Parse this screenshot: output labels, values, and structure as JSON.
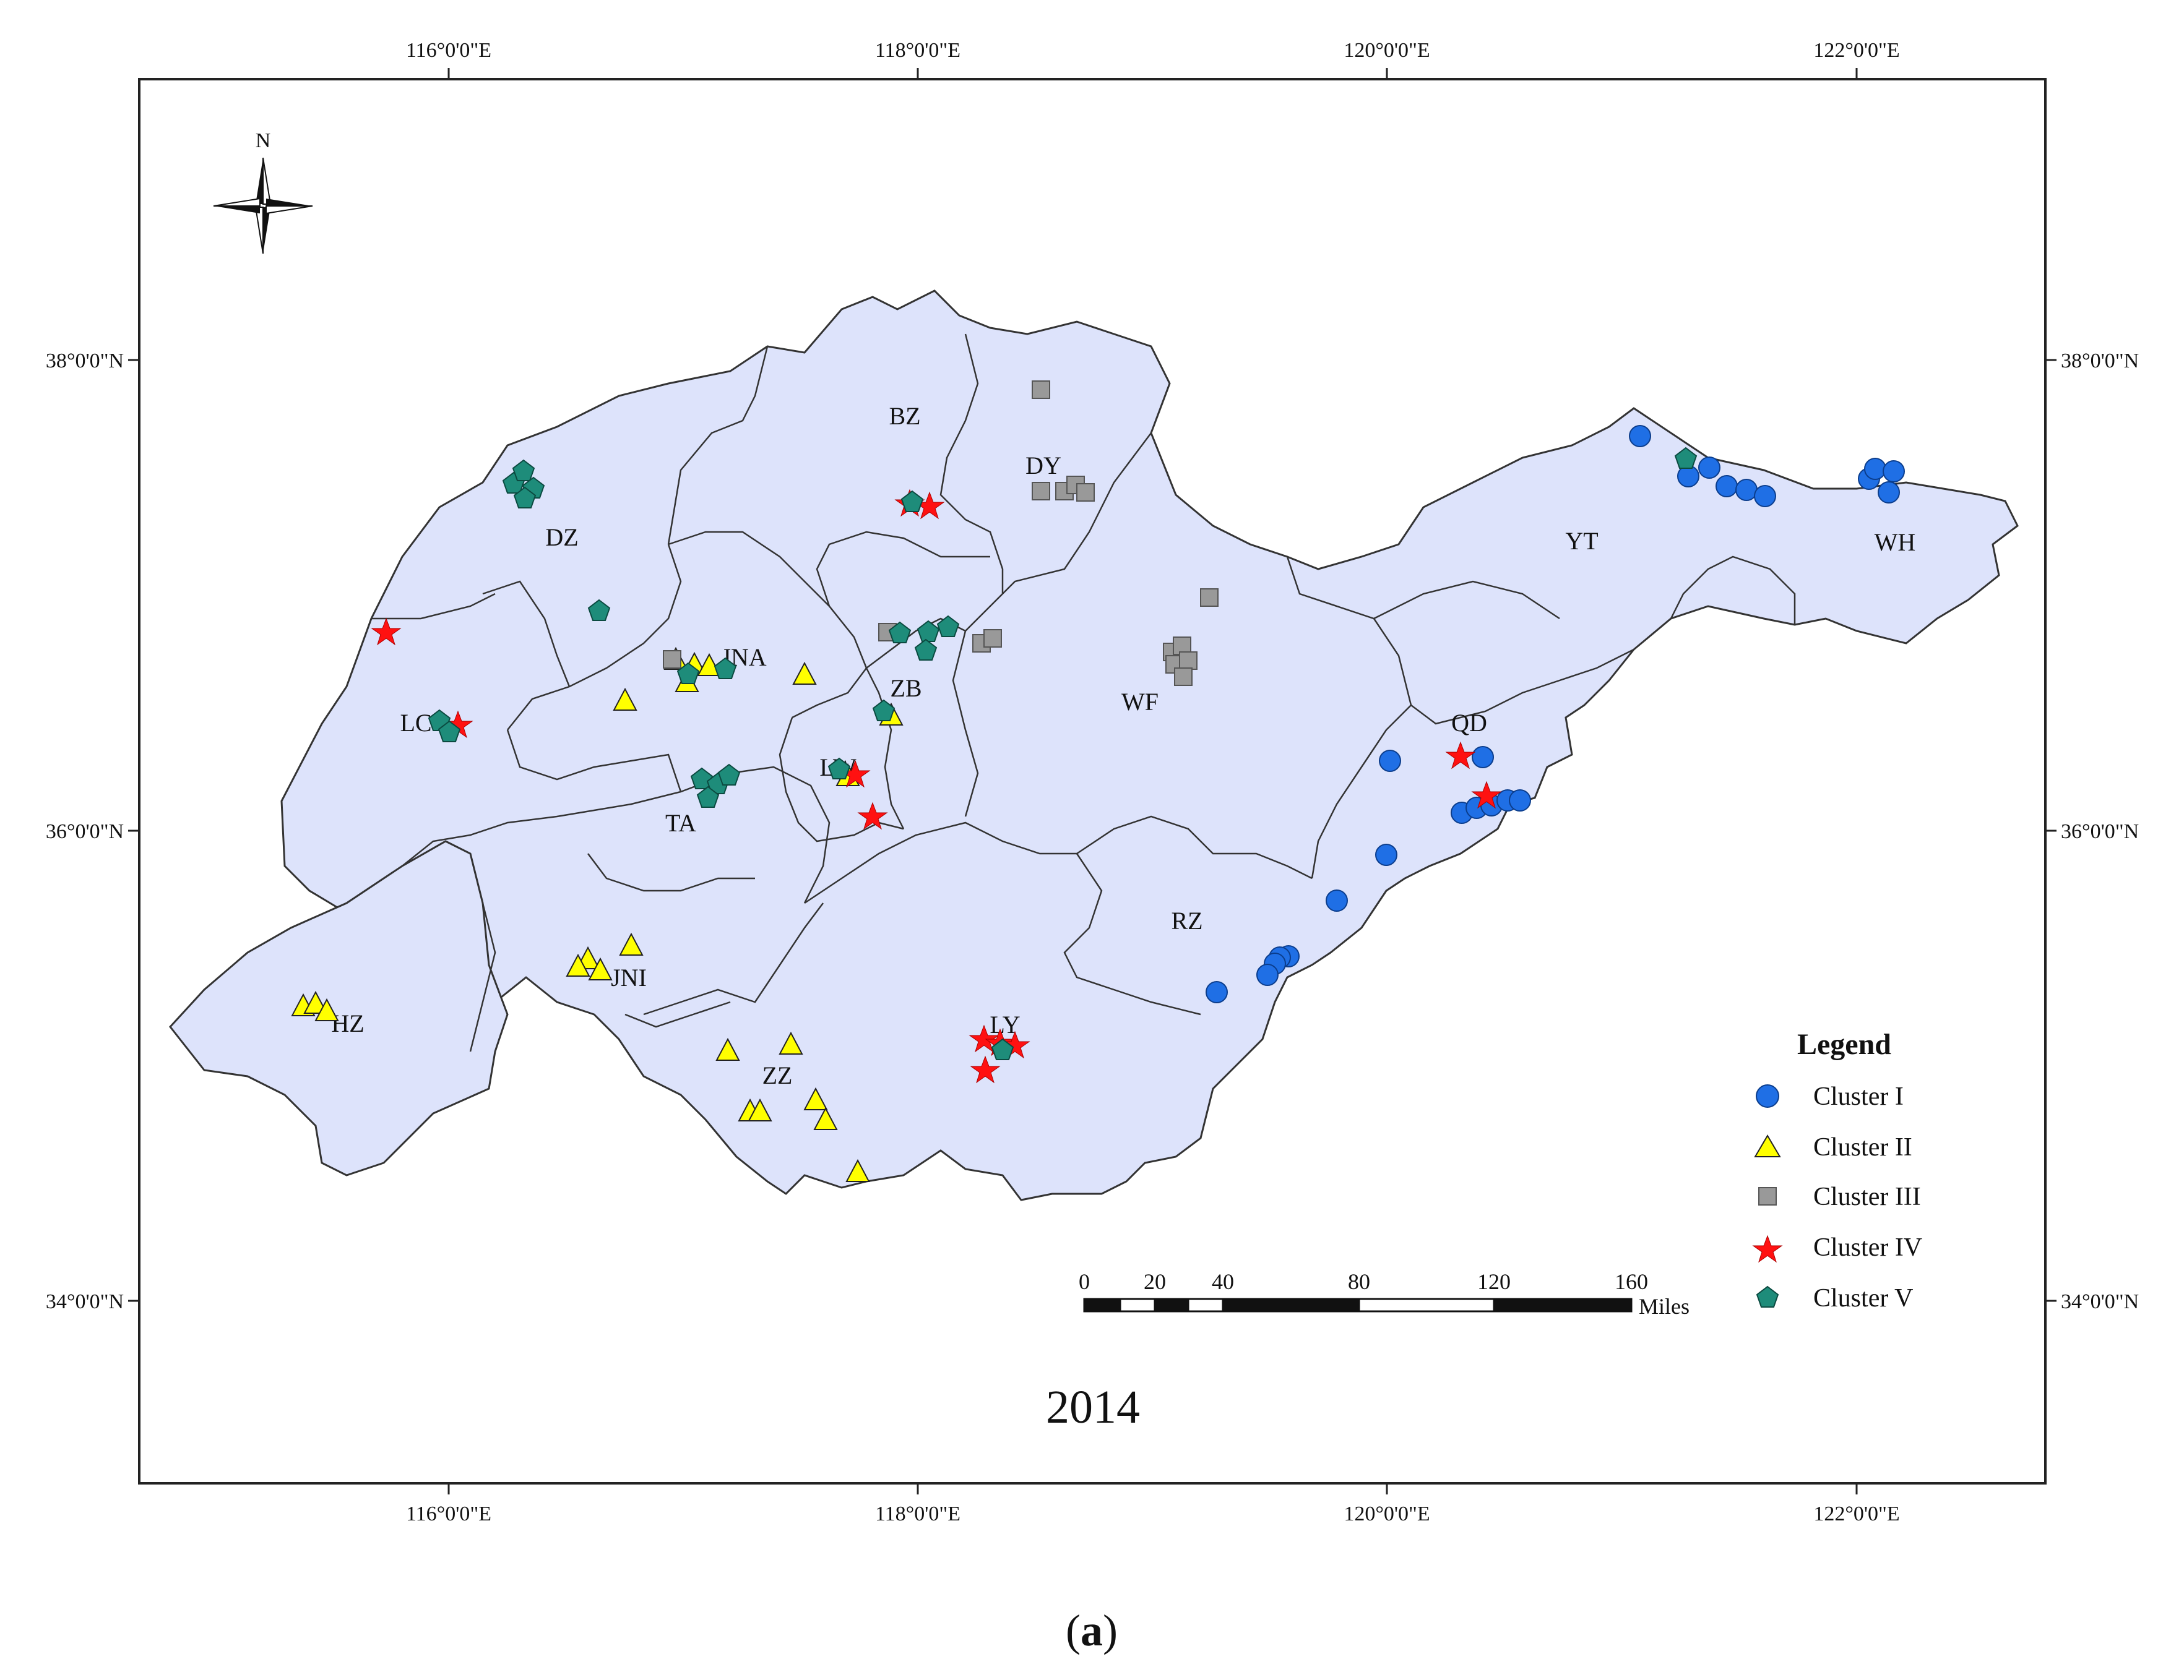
{
  "map": {
    "year": "2014",
    "caption_prefix": "(",
    "caption_letter": "a",
    "caption_suffix": ")",
    "north_label": "N",
    "top_ticks": [
      "116°0'0\"E",
      "118°0'0\"E",
      "120°0'0\"E",
      "122°0'0\"E"
    ],
    "bottom_ticks": [
      "116°0'0\"E",
      "118°0'0\"E",
      "120°0'0\"E",
      "122°0'0\"E"
    ],
    "left_ticks": [
      "38°0'0\"N",
      "36°0'0\"N",
      "34°0'0\"N"
    ],
    "right_ticks": [
      "38°0'0\"N",
      "36°0'0\"N",
      "34°0'0\"N"
    ],
    "cities": [
      "BZ",
      "DY",
      "DZ",
      "YT",
      "WH",
      "JNA",
      "LC",
      "ZB",
      "WF",
      "QD",
      "LW",
      "TA",
      "RZ",
      "HZ",
      "JNI",
      "LY",
      "ZZ"
    ]
  },
  "legend": {
    "title": "Legend",
    "items": [
      "Cluster I",
      "Cluster II",
      "Cluster III",
      "Cluster IV",
      "Cluster V"
    ]
  },
  "scale": {
    "labels": [
      "0",
      "20",
      "40",
      "80",
      "120",
      "160"
    ],
    "unit": "Miles"
  },
  "colors": {
    "land": "#dde3fb",
    "cluster1": "#1f6fe5",
    "cluster2": "#ffff00",
    "cluster3": "#999999",
    "cluster4": "#ff1111",
    "cluster5": "#1e8c7a"
  }
}
